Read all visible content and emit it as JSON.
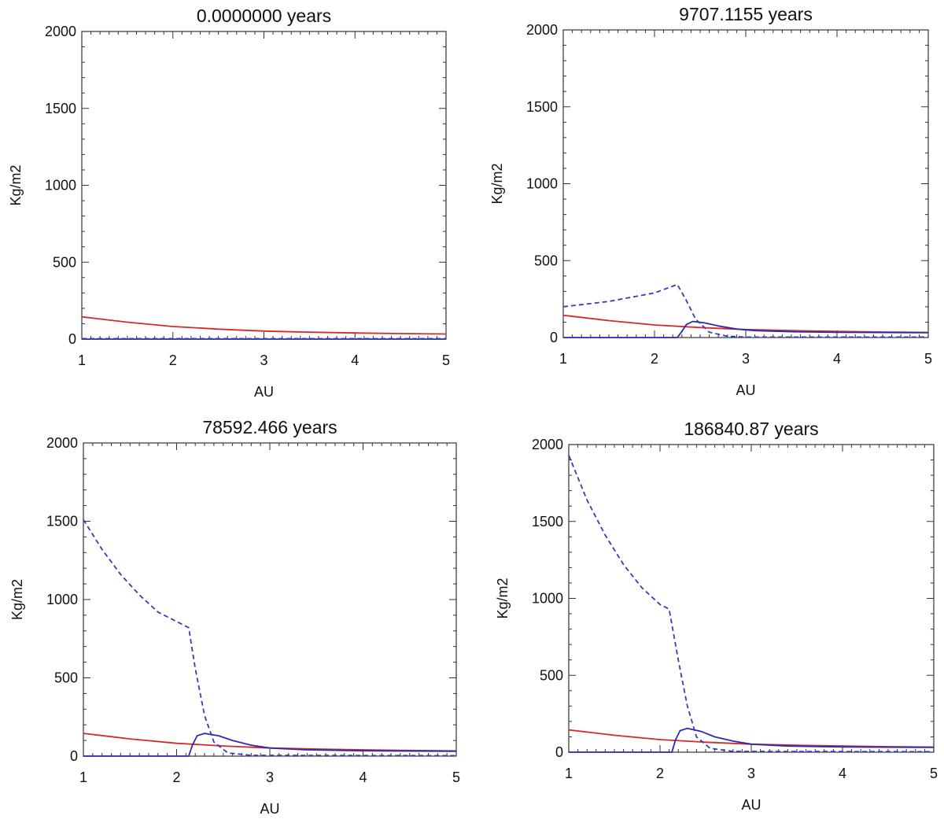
{
  "colors": {
    "gas": "#d42a2a",
    "solid": "#2b2bb0",
    "vapor": "#3a3ab8",
    "frame": "#333333"
  },
  "legend_semantics": [
    "solid red line",
    "solid blue line",
    "dashed blue line"
  ],
  "chart_data": [
    {
      "type": "line",
      "title": "0.0000000 years",
      "xlabel": "AU",
      "ylabel": "Kg/m2",
      "xlim": [
        1,
        5
      ],
      "ylim": [
        0,
        2000
      ],
      "xticks": [
        "1",
        "2",
        "3",
        "4",
        "5"
      ],
      "yticks": [
        "0",
        "500",
        "1000",
        "1500",
        "2000"
      ],
      "grid": false,
      "series": [
        {
          "name": "red-solid",
          "style": "solid",
          "color": "#d42a2a",
          "x": [
            1.0,
            1.5,
            2.0,
            2.5,
            3.0,
            3.5,
            4.0,
            4.5,
            5.0
          ],
          "y": [
            145,
            110,
            82,
            65,
            52,
            45,
            40,
            36,
            33
          ]
        },
        {
          "name": "blue-solid",
          "style": "solid",
          "color": "#2b2bb0",
          "x": [
            1.0,
            5.0
          ],
          "y": [
            0,
            0
          ]
        },
        {
          "name": "blue-dashed",
          "style": "dashed",
          "color": "#3a3ab8",
          "x": [
            1.0,
            5.0
          ],
          "y": [
            3,
            3
          ]
        }
      ]
    },
    {
      "type": "line",
      "title": "9707.1155 years",
      "xlabel": "AU",
      "ylabel": "Kg/m2",
      "xlim": [
        1,
        5
      ],
      "ylim": [
        0,
        2000
      ],
      "xticks": [
        "1",
        "2",
        "3",
        "4",
        "5"
      ],
      "yticks": [
        "0",
        "500",
        "1000",
        "1500",
        "2000"
      ],
      "grid": false,
      "series": [
        {
          "name": "red-solid",
          "style": "solid",
          "color": "#d42a2a",
          "x": [
            1.0,
            1.5,
            2.0,
            2.5,
            3.0,
            3.5,
            4.0,
            4.5,
            5.0
          ],
          "y": [
            145,
            110,
            82,
            65,
            52,
            45,
            40,
            36,
            33
          ]
        },
        {
          "name": "blue-solid",
          "style": "solid",
          "color": "#2b2bb0",
          "x": [
            1.0,
            2.25,
            2.3,
            2.35,
            2.42,
            2.55,
            2.7,
            2.9,
            3.1,
            3.5,
            4.0,
            5.0
          ],
          "y": [
            0,
            0,
            40,
            85,
            105,
            95,
            75,
            55,
            45,
            38,
            34,
            31
          ]
        },
        {
          "name": "blue-dashed",
          "style": "dashed",
          "color": "#3a3ab8",
          "x": [
            1.0,
            1.5,
            2.0,
            2.25,
            2.35,
            2.45,
            2.6,
            2.8,
            3.0,
            5.0
          ],
          "y": [
            200,
            235,
            290,
            345,
            240,
            120,
            35,
            8,
            3,
            3
          ]
        }
      ]
    },
    {
      "type": "line",
      "title": "78592.466 years",
      "xlabel": "AU",
      "ylabel": "Kg/m2",
      "xlim": [
        1,
        5
      ],
      "ylim": [
        0,
        2000
      ],
      "xticks": [
        "1",
        "2",
        "3",
        "4",
        "5"
      ],
      "yticks": [
        "0",
        "500",
        "1000",
        "1500",
        "2000"
      ],
      "grid": false,
      "series": [
        {
          "name": "red-solid",
          "style": "solid",
          "color": "#d42a2a",
          "x": [
            1.0,
            1.5,
            2.0,
            2.5,
            3.0,
            3.5,
            4.0,
            4.5,
            5.0
          ],
          "y": [
            145,
            110,
            82,
            65,
            52,
            45,
            40,
            36,
            33
          ]
        },
        {
          "name": "blue-solid",
          "style": "solid",
          "color": "#2b2bb0",
          "x": [
            1.0,
            2.13,
            2.17,
            2.22,
            2.3,
            2.45,
            2.6,
            2.8,
            3.0,
            3.4,
            4.0,
            5.0
          ],
          "y": [
            0,
            0,
            70,
            130,
            145,
            130,
            100,
            70,
            52,
            40,
            34,
            31
          ]
        },
        {
          "name": "blue-dashed",
          "style": "dashed",
          "color": "#3a3ab8",
          "x": [
            1.0,
            1.2,
            1.4,
            1.6,
            1.8,
            2.0,
            2.13,
            2.2,
            2.3,
            2.4,
            2.55,
            2.8,
            5.0
          ],
          "y": [
            1510,
            1320,
            1160,
            1030,
            920,
            860,
            820,
            560,
            260,
            90,
            20,
            5,
            3
          ]
        }
      ]
    },
    {
      "type": "line",
      "title": "186840.87 years",
      "xlabel": "AU",
      "ylabel": "Kg/m2",
      "xlim": [
        1,
        5
      ],
      "ylim": [
        0,
        2000
      ],
      "xticks": [
        "1",
        "2",
        "3",
        "4",
        "5"
      ],
      "yticks": [
        "0",
        "500",
        "1000",
        "1500",
        "2000"
      ],
      "grid": false,
      "series": [
        {
          "name": "red-solid",
          "style": "solid",
          "color": "#d42a2a",
          "x": [
            1.0,
            1.5,
            2.0,
            2.5,
            3.0,
            3.5,
            4.0,
            4.5,
            5.0
          ],
          "y": [
            145,
            110,
            82,
            65,
            52,
            45,
            40,
            36,
            33
          ]
        },
        {
          "name": "blue-solid",
          "style": "solid",
          "color": "#2b2bb0",
          "x": [
            1.0,
            2.13,
            2.17,
            2.22,
            2.3,
            2.45,
            2.6,
            2.8,
            3.0,
            3.4,
            4.0,
            5.0
          ],
          "y": [
            0,
            0,
            80,
            140,
            155,
            135,
            100,
            72,
            52,
            40,
            34,
            31
          ]
        },
        {
          "name": "blue-dashed",
          "style": "dashed",
          "color": "#3a3ab8",
          "x": [
            1.0,
            1.2,
            1.4,
            1.6,
            1.8,
            2.0,
            2.1,
            2.2,
            2.3,
            2.4,
            2.55,
            2.8,
            5.0
          ],
          "y": [
            1930,
            1640,
            1410,
            1220,
            1070,
            960,
            930,
            600,
            300,
            100,
            25,
            5,
            3
          ]
        }
      ]
    }
  ]
}
